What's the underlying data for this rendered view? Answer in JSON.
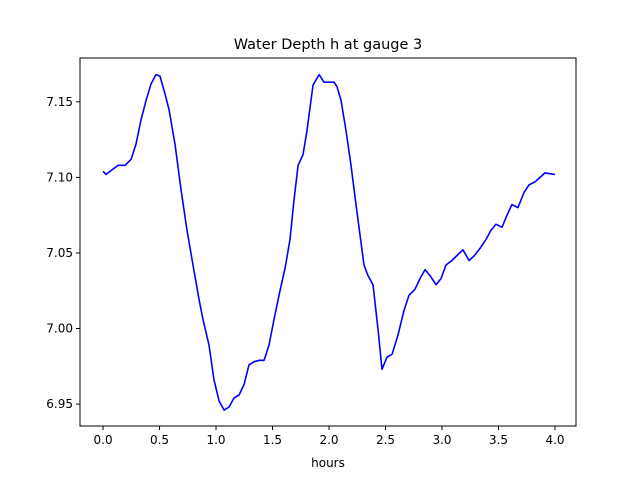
{
  "chart_data": {
    "type": "line",
    "title": "Water Depth h at gauge 3",
    "xlabel": "hours",
    "ylabel": "",
    "xlim": [
      -0.204,
      4.186
    ],
    "ylim": [
      6.9355,
      7.179
    ],
    "grid": false,
    "xticks": [
      0.0,
      0.5,
      1.0,
      1.5,
      2.0,
      2.5,
      3.0,
      3.5,
      4.0
    ],
    "xtick_labels": [
      "0.0",
      "0.5",
      "1.0",
      "1.5",
      "2.0",
      "2.5",
      "3.0",
      "3.5",
      "4.0"
    ],
    "yticks": [
      6.95,
      7.0,
      7.05,
      7.1,
      7.15
    ],
    "ytick_labels": [
      "6.95",
      "7.00",
      "7.05",
      "7.10",
      "7.15"
    ],
    "series": [
      {
        "name": "h",
        "color": "#0000ff",
        "x": [
          0,
          0.027,
          0.08,
          0.133,
          0.195,
          0.248,
          0.292,
          0.336,
          0.381,
          0.425,
          0.469,
          0.504,
          0.549,
          0.584,
          0.637,
          0.69,
          0.743,
          0.796,
          0.85,
          0.885,
          0.938,
          0.982,
          1.027,
          1.071,
          1.115,
          1.159,
          1.204,
          1.248,
          1.292,
          1.336,
          1.381,
          1.425,
          1.469,
          1.513,
          1.566,
          1.611,
          1.655,
          1.69,
          1.726,
          1.77,
          1.805,
          1.858,
          1.912,
          1.956,
          2.0,
          2.044,
          2.071,
          2.106,
          2.15,
          2.195,
          2.239,
          2.274,
          2.31,
          2.345,
          2.389,
          2.434,
          2.469,
          2.513,
          2.558,
          2.611,
          2.664,
          2.708,
          2.761,
          2.805,
          2.85,
          2.894,
          2.947,
          2.991,
          3.035,
          3.088,
          3.142,
          3.186,
          3.239,
          3.283,
          3.336,
          3.389,
          3.434,
          3.478,
          3.531,
          3.575,
          3.619,
          3.673,
          3.726,
          3.77,
          3.823,
          3.867,
          3.912,
          4.0
        ],
        "y": [
          7.104,
          7.102,
          7.105,
          7.108,
          7.108,
          7.112,
          7.122,
          7.138,
          7.151,
          7.162,
          7.168,
          7.167,
          7.155,
          7.145,
          7.122,
          7.092,
          7.065,
          7.042,
          7.019,
          7.006,
          6.989,
          6.966,
          6.952,
          6.946,
          6.948,
          6.954,
          6.956,
          6.963,
          6.976,
          6.978,
          6.979,
          6.979,
          6.989,
          7.006,
          7.025,
          7.04,
          7.059,
          7.085,
          7.108,
          7.115,
          7.131,
          7.161,
          7.168,
          7.163,
          7.163,
          7.163,
          7.16,
          7.151,
          7.131,
          7.108,
          7.082,
          7.062,
          7.042,
          7.035,
          7.029,
          6.999,
          6.973,
          6.981,
          6.983,
          6.996,
          7.012,
          7.022,
          7.026,
          7.033,
          7.039,
          7.035,
          7.029,
          7.033,
          7.042,
          7.045,
          7.049,
          7.052,
          7.045,
          7.048,
          7.053,
          7.059,
          7.065,
          7.069,
          7.067,
          7.075,
          7.082,
          7.08,
          7.09,
          7.095,
          7.097,
          7.1,
          7.103,
          7.102
        ]
      }
    ]
  }
}
